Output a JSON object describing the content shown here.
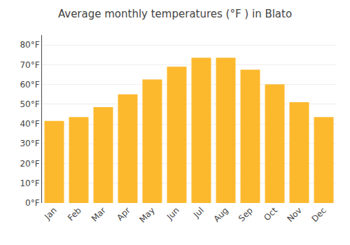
{
  "chart_data": {
    "type": "bar",
    "title": "Average monthly temperatures (°F ) in Blato",
    "categories": [
      "Jan",
      "Feb",
      "Mar",
      "Apr",
      "May",
      "Jun",
      "Jul",
      "Aug",
      "Sep",
      "Oct",
      "Nov",
      "Dec"
    ],
    "values": [
      41.5,
      43.5,
      48.5,
      55.0,
      62.5,
      69.0,
      73.5,
      73.5,
      67.5,
      60.0,
      51.0,
      43.5
    ],
    "color": "#FDB92E",
    "ylim": [
      0,
      85
    ],
    "yticks": [
      {
        "value": 0,
        "label": "0°F"
      },
      {
        "value": 10,
        "label": "10°F"
      },
      {
        "value": 20,
        "label": "20°F"
      },
      {
        "value": 30,
        "label": "30°F"
      },
      {
        "value": 40,
        "label": "40°F"
      },
      {
        "value": 50,
        "label": "50°F"
      },
      {
        "value": 60,
        "label": "60°F"
      },
      {
        "value": 70,
        "label": "70°F"
      },
      {
        "value": 80,
        "label": "80°F"
      }
    ],
    "grid": true
  }
}
